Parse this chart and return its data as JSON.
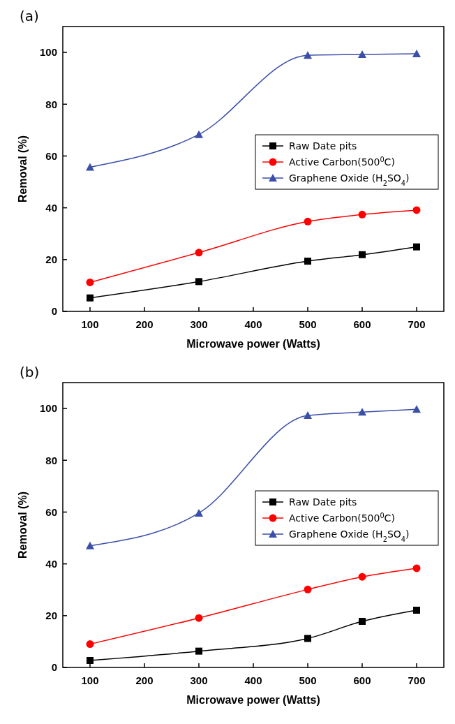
{
  "chart_data": [
    {
      "type": "line",
      "title": "(a)",
      "xlabel": "Microwave power  (Watts)",
      "ylabel": "Removal (%)",
      "x": [
        100,
        300,
        500,
        600,
        700
      ],
      "xlim": [
        50,
        750
      ],
      "xticks": [
        100,
        200,
        300,
        400,
        500,
        600,
        700
      ],
      "ylim": [
        0,
        110
      ],
      "yticks": [
        0,
        20,
        40,
        60,
        80,
        100
      ],
      "legend": "right",
      "series": [
        {
          "name": "Raw Date pits",
          "color": "#000000",
          "marker": "square",
          "values": [
            5.2,
            11.5,
            19.4,
            21.9,
            24.9
          ]
        },
        {
          "name": "Active Carbon(500$^{0}$C)",
          "color": "#ff0000",
          "marker": "circle",
          "values": [
            11.2,
            22.7,
            34.7,
            37.4,
            39.1
          ]
        },
        {
          "name": "Graphene Oxide (H$_{2}$SO$_{4}$)",
          "color": "#3b4fa8",
          "marker": "triangle",
          "values": [
            55.7,
            68.3,
            98.9,
            99.2,
            99.5
          ]
        }
      ]
    },
    {
      "type": "line",
      "title": "(b)",
      "xlabel": "Microwave power  (Watts)",
      "ylabel": "Removal (%)",
      "x": [
        100,
        300,
        500,
        600,
        700
      ],
      "xlim": [
        50,
        750
      ],
      "xticks": [
        100,
        200,
        300,
        400,
        500,
        600,
        700
      ],
      "ylim": [
        0,
        110
      ],
      "yticks": [
        0,
        20,
        40,
        60,
        80,
        100
      ],
      "legend": "right",
      "series": [
        {
          "name": "Raw Date pits",
          "color": "#000000",
          "marker": "square",
          "values": [
            2.7,
            6.3,
            11.2,
            17.8,
            22.1
          ]
        },
        {
          "name": "Active Carbon(500$^{0}$C)",
          "color": "#ff0000",
          "marker": "circle",
          "values": [
            9.0,
            19.1,
            30.1,
            35.0,
            38.3
          ]
        },
        {
          "name": "Graphene Oxide (H$_{2}$SO$_{4}$)",
          "color": "#3b4fa8",
          "marker": "triangle",
          "values": [
            47.0,
            59.6,
            97.3,
            98.6,
            99.7
          ]
        }
      ]
    }
  ]
}
